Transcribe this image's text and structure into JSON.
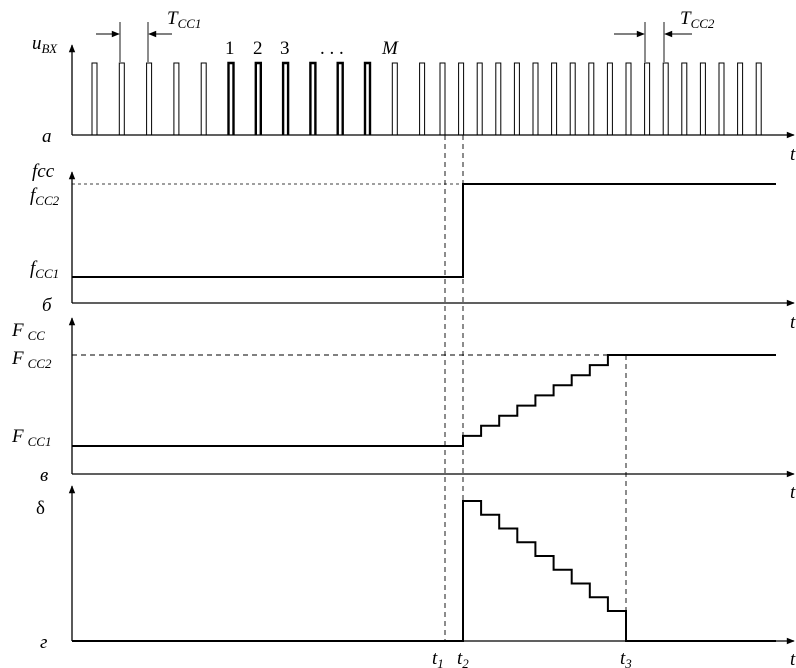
{
  "panels": {
    "a": {
      "letter": "а",
      "ylabel": "u",
      "ylabel_sub": "ВХ",
      "xlabel": "t"
    },
    "b": {
      "letter": "б",
      "ylabel": "fcc",
      "level_low": "f",
      "level_low_sub": "СС1",
      "level_high": "f",
      "level_high_sub": "СС2",
      "xlabel": "t"
    },
    "v": {
      "letter": "в",
      "ylabel": "F",
      "ylabel_sub": "СС",
      "level_low": "F",
      "level_low_sub": "СС1",
      "level_high": "F",
      "level_high_sub": "СС2",
      "xlabel": "t"
    },
    "g": {
      "letter": "г",
      "ylabel": "δ",
      "xlabel": "t"
    }
  },
  "periods": {
    "p1": {
      "main": "T",
      "sub": "СС1"
    },
    "p2": {
      "main": "T",
      "sub": "СС2"
    }
  },
  "pulse_numbers": [
    "1",
    "2",
    "3",
    ". . .",
    "M"
  ],
  "time_marks": {
    "t1": {
      "main": "t",
      "sub": "1"
    },
    "t2": {
      "main": "t",
      "sub": "2"
    },
    "t3": {
      "main": "t",
      "sub": "3"
    }
  }
}
